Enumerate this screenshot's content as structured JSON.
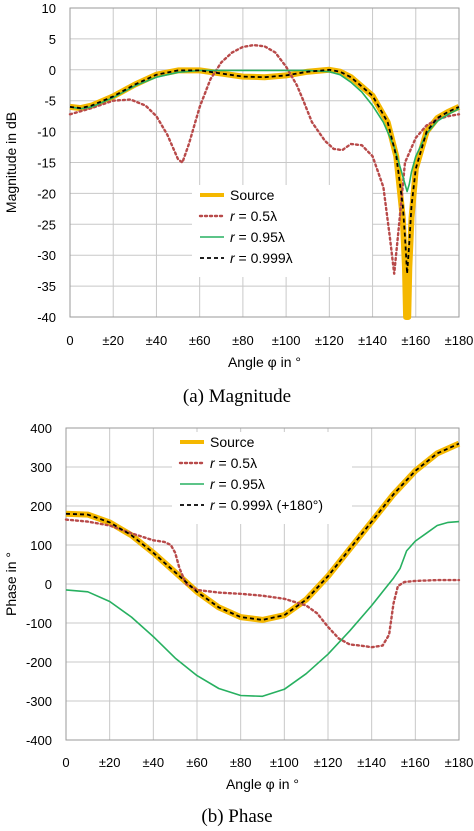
{
  "chart_data": [
    {
      "type": "line",
      "caption": "(a) Magnitude",
      "xlabel": "Angle φ in °",
      "ylabel": "Magnitude in dB",
      "xlim": [
        0,
        180
      ],
      "ylim": [
        -40,
        10
      ],
      "xtick_values": [
        0,
        20,
        40,
        60,
        80,
        100,
        120,
        140,
        160,
        180
      ],
      "xtick_labels": [
        "0",
        "±20",
        "±40",
        "±60",
        "±80",
        "±100",
        "±120",
        "±140",
        "±160",
        "±180"
      ],
      "ytick_values": [
        10,
        5,
        0,
        -5,
        -10,
        -15,
        -20,
        -25,
        -30,
        -35,
        -40
      ],
      "ytick_labels": [
        "10",
        "5",
        "0",
        "-5",
        "-10",
        "-15",
        "-20",
        "-25",
        "-30",
        "-35",
        "-40"
      ],
      "grid": true,
      "legend_position": "center-right",
      "series": [
        {
          "name": "Source",
          "color": "#f5b800",
          "style": "solid-thick",
          "points": [
            [
              0,
              -6
            ],
            [
              5,
              -6.2
            ],
            [
              10,
              -5.8
            ],
            [
              20,
              -4.3
            ],
            [
              30,
              -2.4
            ],
            [
              40,
              -0.8
            ],
            [
              50,
              -0.1
            ],
            [
              60,
              -0.1
            ],
            [
              70,
              -0.6
            ],
            [
              80,
              -1.1
            ],
            [
              90,
              -1.2
            ],
            [
              100,
              -0.9
            ],
            [
              110,
              -0.3
            ],
            [
              120,
              0
            ],
            [
              125,
              -0.3
            ],
            [
              130,
              -1.2
            ],
            [
              140,
              -4.2
            ],
            [
              147,
              -8.5
            ],
            [
              151,
              -14
            ],
            [
              154,
              -24
            ],
            [
              155,
              -32
            ],
            [
              155.5,
              -40
            ],
            [
              156.5,
              -40
            ],
            [
              157,
              -32
            ],
            [
              158,
              -24
            ],
            [
              160,
              -16
            ],
            [
              165,
              -10
            ],
            [
              170,
              -7.8
            ],
            [
              175,
              -6.8
            ],
            [
              180,
              -6
            ]
          ]
        },
        {
          "name": "r = 0.5λ",
          "color": "#b84a4a",
          "style": "dotted",
          "points": [
            [
              0,
              -7.2
            ],
            [
              10,
              -6.2
            ],
            [
              20,
              -5
            ],
            [
              28,
              -4.8
            ],
            [
              35,
              -5.8
            ],
            [
              40,
              -7.5
            ],
            [
              45,
              -10.5
            ],
            [
              50,
              -14.5
            ],
            [
              52,
              -15
            ],
            [
              55,
              -12
            ],
            [
              60,
              -6
            ],
            [
              65,
              -1.5
            ],
            [
              70,
              1.2
            ],
            [
              75,
              2.8
            ],
            [
              80,
              3.7
            ],
            [
              85,
              4
            ],
            [
              90,
              3.8
            ],
            [
              95,
              2.8
            ],
            [
              100,
              0.5
            ],
            [
              105,
              -2.5
            ],
            [
              108,
              -5
            ],
            [
              112,
              -8.5
            ],
            [
              118,
              -11.5
            ],
            [
              122,
              -12.8
            ],
            [
              126,
              -13
            ],
            [
              130,
              -12
            ],
            [
              135,
              -12.2
            ],
            [
              140,
              -14
            ],
            [
              145,
              -19
            ],
            [
              148,
              -27
            ],
            [
              150,
              -33
            ],
            [
              152,
              -26
            ],
            [
              155,
              -15
            ],
            [
              160,
              -11
            ],
            [
              165,
              -9
            ],
            [
              170,
              -8
            ],
            [
              175,
              -7.5
            ],
            [
              180,
              -7.2
            ]
          ]
        },
        {
          "name": "r = 0.95λ",
          "color": "#27b060",
          "style": "solid",
          "points": [
            [
              0,
              -6
            ],
            [
              5,
              -6.3
            ],
            [
              10,
              -6
            ],
            [
              20,
              -4.5
            ],
            [
              30,
              -2.6
            ],
            [
              40,
              -1.2
            ],
            [
              50,
              -0.4
            ],
            [
              60,
              -0.1
            ],
            [
              70,
              -0.1
            ],
            [
              80,
              -0.1
            ],
            [
              90,
              -0.1
            ],
            [
              100,
              -0.1
            ],
            [
              110,
              -0.1
            ],
            [
              120,
              -0.3
            ],
            [
              125,
              -0.8
            ],
            [
              130,
              -2
            ],
            [
              135,
              -3.6
            ],
            [
              140,
              -5.8
            ],
            [
              145,
              -8.5
            ],
            [
              150,
              -12.5
            ],
            [
              153,
              -16
            ],
            [
              155,
              -18.5
            ],
            [
              156,
              -19.7
            ],
            [
              157,
              -18.5
            ],
            [
              158,
              -16.5
            ],
            [
              160,
              -14
            ],
            [
              165,
              -10.3
            ],
            [
              170,
              -8.3
            ],
            [
              175,
              -7.2
            ],
            [
              180,
              -6.3
            ]
          ]
        },
        {
          "name": "r = 0.999λ",
          "color": "#000000",
          "style": "dashed",
          "points": [
            [
              0,
              -6
            ],
            [
              5,
              -6.2
            ],
            [
              10,
              -5.8
            ],
            [
              20,
              -4.3
            ],
            [
              30,
              -2.4
            ],
            [
              40,
              -0.8
            ],
            [
              50,
              -0.1
            ],
            [
              60,
              -0.1
            ],
            [
              70,
              -0.6
            ],
            [
              80,
              -1.1
            ],
            [
              90,
              -1.2
            ],
            [
              100,
              -0.9
            ],
            [
              110,
              -0.3
            ],
            [
              120,
              0
            ],
            [
              125,
              -0.3
            ],
            [
              130,
              -1.2
            ],
            [
              140,
              -4.2
            ],
            [
              147,
              -8.5
            ],
            [
              151,
              -14
            ],
            [
              154,
              -22
            ],
            [
              155,
              -27
            ],
            [
              156,
              -33
            ],
            [
              157,
              -28
            ],
            [
              158,
              -22
            ],
            [
              160,
              -16
            ],
            [
              165,
              -10
            ],
            [
              170,
              -7.8
            ],
            [
              175,
              -6.8
            ],
            [
              180,
              -6
            ]
          ]
        }
      ]
    },
    {
      "type": "line",
      "caption": "(b) Phase",
      "xlabel": "Angle φ in °",
      "ylabel": "Phase in °",
      "xlim": [
        0,
        180
      ],
      "ylim": [
        -400,
        400
      ],
      "xtick_values": [
        0,
        20,
        40,
        60,
        80,
        100,
        120,
        140,
        160,
        180
      ],
      "xtick_labels": [
        "0",
        "±20",
        "±40",
        "±60",
        "±80",
        "±100",
        "±120",
        "±140",
        "±160",
        "±180"
      ],
      "ytick_values": [
        400,
        300,
        200,
        100,
        0,
        -100,
        -200,
        -300,
        -400
      ],
      "ytick_labels": [
        "400",
        "300",
        "200",
        "100",
        "0",
        "-100",
        "-200",
        "-300",
        "-400"
      ],
      "grid": true,
      "legend_position": "top-center",
      "series": [
        {
          "name": "Source",
          "color": "#f5b800",
          "style": "solid-thick",
          "points": [
            [
              0,
              180
            ],
            [
              10,
              178
            ],
            [
              20,
              158
            ],
            [
              30,
              125
            ],
            [
              40,
              80
            ],
            [
              50,
              30
            ],
            [
              60,
              -20
            ],
            [
              70,
              -60
            ],
            [
              80,
              -85
            ],
            [
              90,
              -92
            ],
            [
              100,
              -80
            ],
            [
              110,
              -40
            ],
            [
              120,
              20
            ],
            [
              130,
              90
            ],
            [
              140,
              160
            ],
            [
              150,
              230
            ],
            [
              160,
              290
            ],
            [
              170,
              335
            ],
            [
              180,
              360
            ]
          ]
        },
        {
          "name": "r = 0.5λ",
          "color": "#b84a4a",
          "style": "dotted",
          "points": [
            [
              0,
              165
            ],
            [
              10,
              160
            ],
            [
              20,
              150
            ],
            [
              30,
              130
            ],
            [
              40,
              112
            ],
            [
              45,
              108
            ],
            [
              48,
              100
            ],
            [
              50,
              80
            ],
            [
              52,
              40
            ],
            [
              55,
              0
            ],
            [
              60,
              -15
            ],
            [
              70,
              -22
            ],
            [
              80,
              -25
            ],
            [
              90,
              -30
            ],
            [
              100,
              -38
            ],
            [
              110,
              -55
            ],
            [
              115,
              -75
            ],
            [
              120,
              -110
            ],
            [
              125,
              -140
            ],
            [
              130,
              -155
            ],
            [
              135,
              -158
            ],
            [
              140,
              -162
            ],
            [
              145,
              -158
            ],
            [
              148,
              -130
            ],
            [
              150,
              -50
            ],
            [
              152,
              -5
            ],
            [
              155,
              5
            ],
            [
              160,
              8
            ],
            [
              170,
              10
            ],
            [
              180,
              10
            ]
          ]
        },
        {
          "name": "r = 0.95λ",
          "color": "#27b060",
          "style": "solid",
          "points": [
            [
              0,
              -15
            ],
            [
              10,
              -20
            ],
            [
              20,
              -45
            ],
            [
              30,
              -85
            ],
            [
              40,
              -135
            ],
            [
              50,
              -190
            ],
            [
              60,
              -235
            ],
            [
              70,
              -268
            ],
            [
              80,
              -286
            ],
            [
              90,
              -288
            ],
            [
              100,
              -270
            ],
            [
              110,
              -230
            ],
            [
              120,
              -180
            ],
            [
              130,
              -120
            ],
            [
              140,
              -55
            ],
            [
              145,
              -20
            ],
            [
              150,
              15
            ],
            [
              153,
              40
            ],
            [
              156,
              85
            ],
            [
              160,
              110
            ],
            [
              165,
              130
            ],
            [
              170,
              150
            ],
            [
              175,
              158
            ],
            [
              180,
              160
            ]
          ]
        },
        {
          "name": "r = 0.999λ (+180°)",
          "color": "#000000",
          "style": "dashed",
          "points": [
            [
              0,
              180
            ],
            [
              10,
              178
            ],
            [
              20,
              158
            ],
            [
              30,
              125
            ],
            [
              40,
              80
            ],
            [
              50,
              30
            ],
            [
              60,
              -20
            ],
            [
              70,
              -60
            ],
            [
              80,
              -85
            ],
            [
              90,
              -92
            ],
            [
              100,
              -80
            ],
            [
              110,
              -40
            ],
            [
              120,
              20
            ],
            [
              130,
              90
            ],
            [
              140,
              160
            ],
            [
              150,
              230
            ],
            [
              160,
              290
            ],
            [
              170,
              335
            ],
            [
              180,
              360
            ]
          ]
        }
      ]
    }
  ],
  "legend_italic_prefix": "r",
  "legend_italic_separator": " = "
}
